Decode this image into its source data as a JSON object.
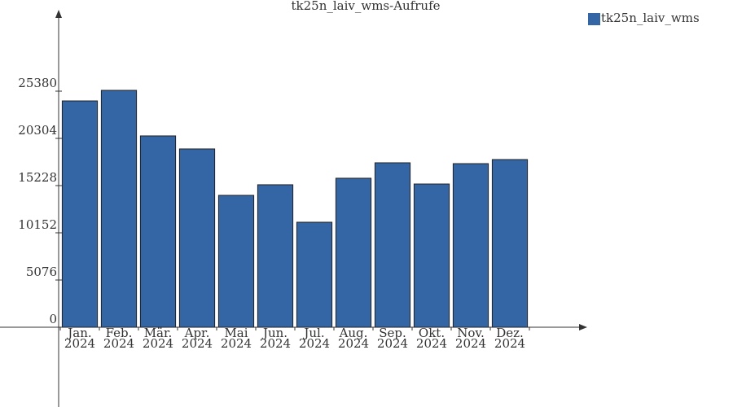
{
  "chart_data": {
    "type": "bar",
    "title": "tk25n_laiv_wms-Aufrufe",
    "categories": [
      [
        "Jan.",
        "2024"
      ],
      [
        "Feb.",
        "2024"
      ],
      [
        "Mär.",
        "2024"
      ],
      [
        "Apr.",
        "2024"
      ],
      [
        "Mai",
        "2024"
      ],
      [
        "Jun.",
        "2024"
      ],
      [
        "Jul.",
        "2024"
      ],
      [
        "Aug.",
        "2024"
      ],
      [
        "Sep.",
        "2024"
      ],
      [
        "Okt.",
        "2024"
      ],
      [
        "Nov.",
        "2024"
      ],
      [
        "Dez.",
        "2024"
      ]
    ],
    "series": [
      {
        "name": "tk25n_laiv_wms",
        "color": "#3465a4",
        "values": [
          24330,
          25470,
          20570,
          19170,
          14180,
          15320,
          11290,
          16020,
          17680,
          15400,
          17590,
          18030
        ]
      }
    ],
    "ylim": [
      0,
      33870
    ],
    "yticks": [
      0,
      5076,
      10152,
      15228,
      20304,
      25380
    ],
    "legend": "top-right"
  }
}
